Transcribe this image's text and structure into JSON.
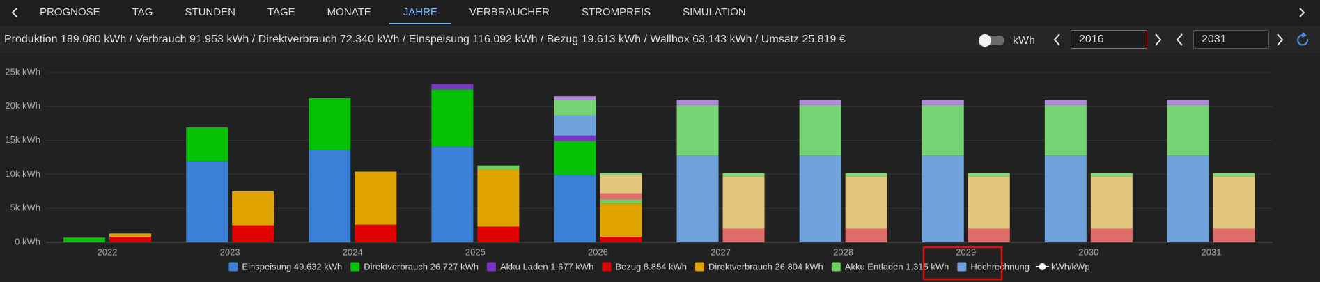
{
  "nav": {
    "tabs": [
      "PROGNOSE",
      "TAG",
      "STUNDEN",
      "TAGE",
      "MONATE",
      "JAHRE",
      "VERBRAUCHER",
      "STROMPREIS",
      "SIMULATION"
    ],
    "active": 5
  },
  "header": {
    "summary": "Produktion 189.080 kWh / Verbrauch 91.953 kWh / Direktverbrauch 72.340 kWh / Einspeisung 116.092 kWh / Bezug 19.613 kWh / Wallbox 63.143 kWh / Umsatz 25.819 €",
    "unit_toggle": "kWh",
    "from_year": "2016",
    "to_year": "2031"
  },
  "chart_data": {
    "type": "bar",
    "stacked": true,
    "grid": true,
    "categories": [
      "2022",
      "2023",
      "2024",
      "2025",
      "2026",
      "2027",
      "2028",
      "2029",
      "2030",
      "2031"
    ],
    "ylim": [
      0,
      25000
    ],
    "yticks": [
      {
        "value": 0,
        "label": "0 kWh"
      },
      {
        "value": 5000,
        "label": "5k kWh"
      },
      {
        "value": 10000,
        "label": "10k kWh"
      },
      {
        "value": 15000,
        "label": "15k kWh"
      },
      {
        "value": 20000,
        "label": "20k kWh"
      },
      {
        "value": 25000,
        "label": "25k kWh"
      }
    ],
    "series": [
      {
        "name": "Einspeisung 49.632 kWh",
        "color": "#3b7fd6",
        "stack": 0,
        "values": [
          0,
          11900,
          13600,
          14100,
          9900,
          null,
          null,
          null,
          null,
          null
        ]
      },
      {
        "name": "Direktverbrauch 26.727 kWh",
        "color": "#06c106",
        "stack": 0,
        "values": [
          700,
          5000,
          7600,
          8400,
          5000,
          null,
          null,
          null,
          null,
          null
        ]
      },
      {
        "name": "Akku Laden 1.677 kWh",
        "color": "#7a35c8",
        "stack": 0,
        "values": [
          0,
          0,
          0,
          800,
          800,
          null,
          null,
          null,
          null,
          null
        ]
      },
      {
        "name": "Bezug 8.854 kWh",
        "color": "#e00000",
        "stack": 1,
        "values": [
          800,
          2500,
          2600,
          2300,
          800,
          null,
          null,
          null,
          null,
          null
        ]
      },
      {
        "name": "Direktverbrauch 26.804 kWh",
        "color": "#e0a300",
        "stack": 1,
        "values": [
          500,
          5000,
          7800,
          8400,
          4900,
          null,
          null,
          null,
          null,
          null
        ]
      },
      {
        "name": "Akku Entladen 1.315 kWh",
        "color": "#6bd15c",
        "stack": 1,
        "values": [
          0,
          0,
          0,
          600,
          600,
          null,
          null,
          null,
          null,
          null
        ]
      }
    ],
    "forecast": {
      "name": "Hochrechnung",
      "color": "#70a2dc",
      "components": [
        {
          "stack": 0,
          "color": "#70a2dc",
          "values": [
            null,
            null,
            null,
            null,
            3000,
            12800,
            12800,
            12800,
            12800,
            12800
          ]
        },
        {
          "stack": 0,
          "color": "#74d474",
          "values": [
            null,
            null,
            null,
            null,
            2300,
            7400,
            7400,
            7400,
            7400,
            7400
          ]
        },
        {
          "stack": 0,
          "color": "#b088d8",
          "values": [
            null,
            null,
            null,
            null,
            500,
            800,
            800,
            800,
            800,
            800
          ]
        },
        {
          "stack": 1,
          "color": "#e06c6c",
          "values": [
            null,
            null,
            null,
            null,
            900,
            2000,
            2000,
            2000,
            2000,
            2000
          ]
        },
        {
          "stack": 1,
          "color": "#e2c67c",
          "values": [
            null,
            null,
            null,
            null,
            2700,
            7700,
            7700,
            7700,
            7700,
            7700
          ]
        },
        {
          "stack": 1,
          "color": "#86d67c",
          "values": [
            null,
            null,
            null,
            null,
            300,
            500,
            500,
            500,
            500,
            500
          ]
        }
      ]
    },
    "line_series": {
      "name": "kWh/kWp",
      "color": "#ffffff",
      "values": [
        null,
        null,
        null,
        null,
        null,
        null,
        null,
        null,
        null,
        null
      ]
    }
  }
}
